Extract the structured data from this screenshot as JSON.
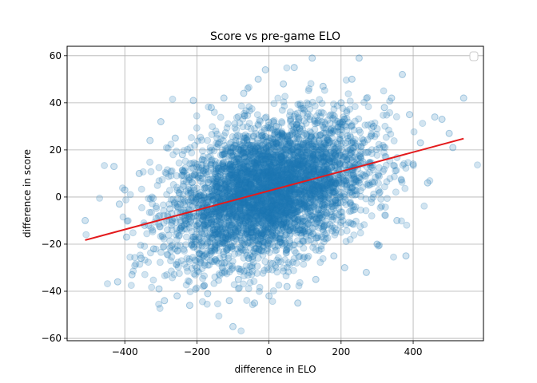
{
  "chart_data": {
    "type": "scatter",
    "title": "Score vs pre-game ELO",
    "xlabel": "difference in ELO",
    "ylabel": "difference in score",
    "xlim": [
      -560,
      595
    ],
    "ylim": [
      -61,
      64
    ],
    "xticks": [
      -400,
      -200,
      0,
      200,
      400
    ],
    "yticks": [
      -60,
      -40,
      -20,
      0,
      20,
      40,
      60
    ],
    "grid": true,
    "legend": {
      "placement": "top-right",
      "entries": []
    },
    "point_color": "#1f77b4",
    "point_alpha": 0.2,
    "fit_line": {
      "color": "#e31a1c",
      "x": [
        -510,
        540
      ],
      "y": [
        -18.3,
        24.8
      ]
    },
    "sample_points": [
      [
        -510,
        -10
      ],
      [
        -430,
        13
      ],
      [
        -420,
        -36
      ],
      [
        -415,
        -3
      ],
      [
        -400,
        3
      ],
      [
        -395,
        -17
      ],
      [
        -380,
        -33
      ],
      [
        -360,
        10
      ],
      [
        -355,
        -26
      ],
      [
        -345,
        -12
      ],
      [
        -330,
        24
      ],
      [
        -320,
        -22
      ],
      [
        -305,
        -39
      ],
      [
        -300,
        32
      ],
      [
        -290,
        -44
      ],
      [
        -275,
        -5
      ],
      [
        -260,
        25
      ],
      [
        -255,
        -42
      ],
      [
        -240,
        18
      ],
      [
        -220,
        -46
      ],
      [
        -210,
        41
      ],
      [
        -200,
        -30
      ],
      [
        -185,
        8
      ],
      [
        -170,
        -41
      ],
      [
        -160,
        38
      ],
      [
        -150,
        -15
      ],
      [
        -125,
        42
      ],
      [
        -110,
        -44
      ],
      [
        -105,
        21
      ],
      [
        -100,
        -55
      ],
      [
        -85,
        -35
      ],
      [
        -70,
        44
      ],
      [
        -60,
        10
      ],
      [
        -40,
        -45
      ],
      [
        -30,
        50
      ],
      [
        -20,
        -8
      ],
      [
        -10,
        54
      ],
      [
        0,
        -42
      ],
      [
        20,
        30
      ],
      [
        40,
        48
      ],
      [
        50,
        -38
      ],
      [
        70,
        55
      ],
      [
        80,
        -45
      ],
      [
        100,
        20
      ],
      [
        120,
        59
      ],
      [
        130,
        -35
      ],
      [
        150,
        47
      ],
      [
        160,
        5
      ],
      [
        180,
        -25
      ],
      [
        200,
        40
      ],
      [
        210,
        -30
      ],
      [
        230,
        50
      ],
      [
        250,
        59
      ],
      [
        260,
        15
      ],
      [
        270,
        -32
      ],
      [
        290,
        30
      ],
      [
        300,
        -20
      ],
      [
        320,
        38
      ],
      [
        340,
        42
      ],
      [
        355,
        -10
      ],
      [
        370,
        52
      ],
      [
        380,
        -25
      ],
      [
        390,
        35
      ],
      [
        400,
        14
      ],
      [
        420,
        23
      ],
      [
        440,
        6
      ],
      [
        460,
        34
      ],
      [
        480,
        33
      ],
      [
        500,
        27
      ],
      [
        510,
        21
      ],
      [
        540,
        42
      ],
      [
        -80,
        0
      ],
      [
        0,
        5
      ],
      [
        80,
        10
      ],
      [
        -150,
        -5
      ],
      [
        150,
        15
      ],
      [
        0,
        -10
      ],
      [
        50,
        20
      ],
      [
        -50,
        -15
      ]
    ]
  }
}
